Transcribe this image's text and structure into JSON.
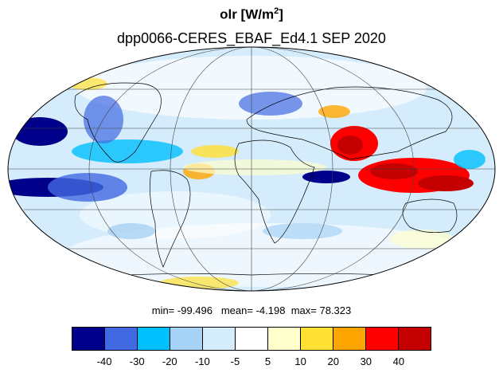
{
  "title": {
    "var": "olr [W/m",
    "sup": "2",
    "end": "]"
  },
  "subtitle": "dpp0066-CERES_EBAF_Ed4.1  SEP 2020",
  "stats": {
    "min_label": "min=",
    "min": "-99.496",
    "mean_label": "mean=",
    "mean": "-4.198",
    "max_label": "max=",
    "max": "78.323"
  },
  "colorbar": {
    "colors": [
      "#00008b",
      "#4169e1",
      "#00bfff",
      "#a6d2f5",
      "#d4ecfb",
      "#ffffff",
      "#ffffcc",
      "#ffe033",
      "#ffa500",
      "#ff0000",
      "#c40000"
    ],
    "ticks": [
      "-40",
      "-30",
      "-20",
      "-10",
      "-5",
      "5",
      "10",
      "20",
      "30",
      "40"
    ]
  },
  "map": {
    "projection": "mollweide",
    "background_color": "#d4ecfb",
    "grid_color": "#444444"
  }
}
